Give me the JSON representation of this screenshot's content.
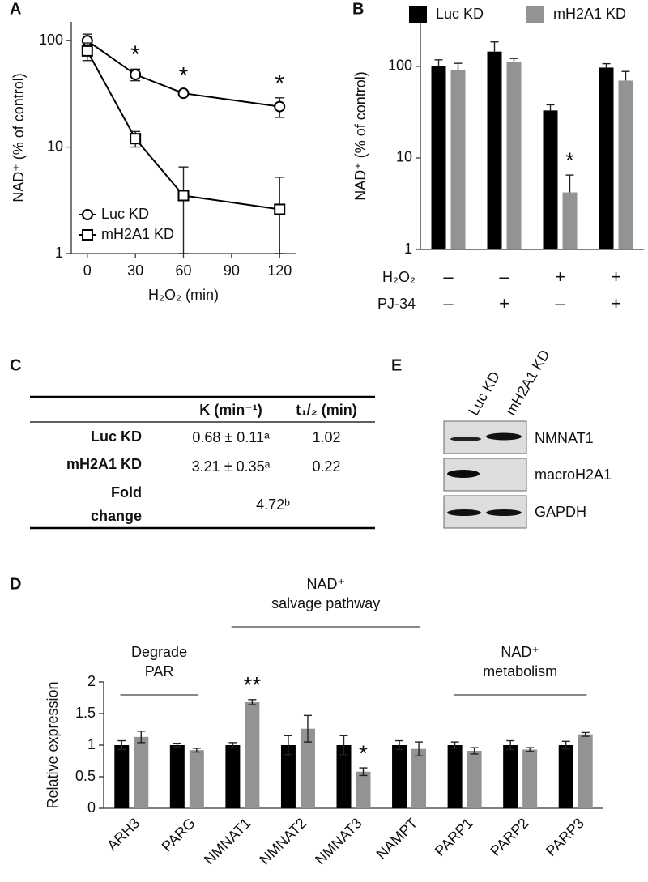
{
  "chart_data": [
    {
      "panel": "A",
      "type": "line",
      "y_label": "NAD⁺ (% of control)",
      "x_label": "H₂O₂ (min)",
      "x": [
        0,
        30,
        60,
        120
      ],
      "xlim": [
        -10,
        130
      ],
      "xticks": [
        0,
        30,
        60,
        90,
        120
      ],
      "ylim": [
        1,
        150
      ],
      "yticks": [
        1,
        10,
        100
      ],
      "y_log": true,
      "legend": "lower left",
      "error_bars": "both",
      "series": [
        {
          "name": "Luc KD",
          "color": "#000000",
          "marker": "circle",
          "values": [
            100,
            48,
            32,
            24
          ],
          "errors": [
            15,
            6,
            2,
            5
          ],
          "significance": [
            null,
            "*",
            "*",
            "*"
          ]
        },
        {
          "name": "mH2A1 KD",
          "color": "#000000",
          "marker": "square",
          "values": [
            80,
            12,
            3.5,
            2.6
          ],
          "errors": [
            15,
            2,
            3,
            2.6
          ]
        }
      ]
    },
    {
      "panel": "B",
      "type": "bar",
      "y_label": "NAD⁺ (% of control)",
      "ylim": [
        1,
        300
      ],
      "yticks": [
        1,
        10,
        100
      ],
      "y_log": true,
      "legend": "top",
      "error_bars": "up",
      "conditions": [
        {
          "name": "H₂O₂",
          "values": [
            "–",
            "–",
            "+",
            "+"
          ]
        },
        {
          "name": "PJ-34",
          "values": [
            "–",
            "+",
            "–",
            "+"
          ]
        }
      ],
      "series": [
        {
          "name": "Luc KD",
          "color": "#000000",
          "values": [
            100,
            145,
            33,
            97
          ],
          "errors": [
            18,
            40,
            5,
            10
          ]
        },
        {
          "name": "mH2A1 KD",
          "color": "#939393",
          "values": [
            92,
            112,
            4.2,
            70
          ],
          "errors": [
            16,
            10,
            2.3,
            18
          ],
          "significance": [
            null,
            null,
            "*",
            null
          ]
        }
      ]
    },
    {
      "panel": "D",
      "type": "bar",
      "y_label": "Relative expression",
      "categories": [
        "ARH3",
        "PARG",
        "NMNAT1",
        "NMNAT2",
        "NMNAT3",
        "NAMPT",
        "PARP1",
        "PARP2",
        "PARP3"
      ],
      "ylim": [
        0,
        2
      ],
      "yticks": [
        0,
        0.5,
        1,
        1.5,
        2
      ],
      "y_log": false,
      "error_bars": "both",
      "groups": [
        {
          "label": [
            "Degrade",
            "PAR"
          ]
        },
        {
          "label": [
            "NAD⁺",
            "salvage pathway"
          ]
        },
        {
          "label": [
            "NAD⁺",
            "metabolism"
          ]
        }
      ],
      "series": [
        {
          "color": "#000000",
          "values": [
            1,
            1,
            1,
            1,
            1,
            1,
            1,
            1,
            1
          ],
          "errors": [
            0.07,
            0.03,
            0.04,
            0.15,
            0.15,
            0.07,
            0.05,
            0.07,
            0.06
          ]
        },
        {
          "color": "#939393",
          "values": [
            1.13,
            0.92,
            1.68,
            1.26,
            0.58,
            0.94,
            0.91,
            0.93,
            1.17
          ],
          "errors": [
            0.09,
            0.03,
            0.04,
            0.21,
            0.06,
            0.11,
            0.05,
            0.03,
            0.03
          ],
          "significance": [
            null,
            null,
            "**",
            null,
            "*",
            null,
            null,
            null,
            null
          ]
        }
      ]
    }
  ],
  "table": {
    "panel": "C",
    "header": [
      "K (min⁻¹)",
      "t₁/₂ (min)"
    ],
    "rows": [
      [
        "Luc KD",
        "0.68 ± 0.11ᵃ",
        "1.02"
      ],
      [
        "mH2A1 KD",
        "3.21 ± 0.35ᵃ",
        "0.22"
      ]
    ],
    "fold_label": [
      "Fold",
      "change"
    ],
    "fold_value": "4.72ᵇ"
  },
  "blot": {
    "panel": "E",
    "columns": [
      "Luc KD",
      "mH2A1 KD"
    ],
    "rows": [
      "NMNAT1",
      "macroH2A1",
      "GAPDH"
    ]
  }
}
